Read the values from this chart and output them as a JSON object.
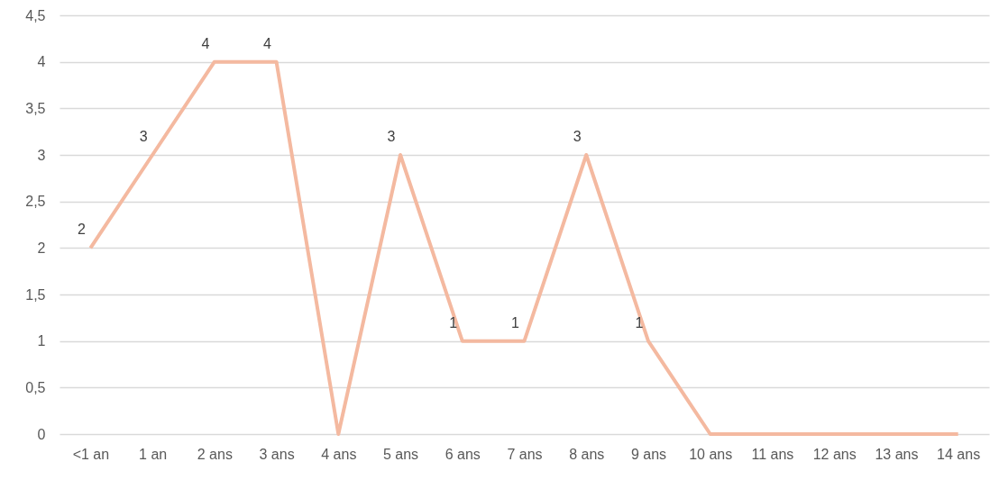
{
  "chart_data": {
    "type": "line",
    "categories": [
      "<1 an",
      "1 an",
      "2 ans",
      "3 ans",
      "4 ans",
      "5 ans",
      "6 ans",
      "7 ans",
      "8 ans",
      "9 ans",
      "10 ans",
      "11 ans",
      "12 ans",
      "13 ans",
      "14 ans"
    ],
    "series": [
      {
        "color": "#f4b9a0",
        "values": [
          2,
          3,
          4,
          4,
          0,
          3,
          1,
          1,
          3,
          1,
          0,
          0,
          0,
          0,
          0
        ],
        "value_labels": [
          "2",
          "3",
          "4",
          "4",
          null,
          "3",
          "1",
          "1",
          "3",
          "1",
          null,
          null,
          null,
          null,
          null
        ]
      }
    ],
    "ylim": [
      0,
      4.5
    ],
    "yticks": [
      0,
      {
        "value": 0.5,
        "label": "0,5"
      },
      1,
      {
        "value": 1.5,
        "label": "1,5"
      },
      2,
      {
        "value": 2.5,
        "label": "2,5"
      },
      3,
      {
        "value": 3.5,
        "label": "3,5"
      },
      4,
      {
        "value": 4.5,
        "label": "4,5"
      }
    ],
    "grid": "y",
    "marker": "none",
    "line_style": "solid"
  }
}
